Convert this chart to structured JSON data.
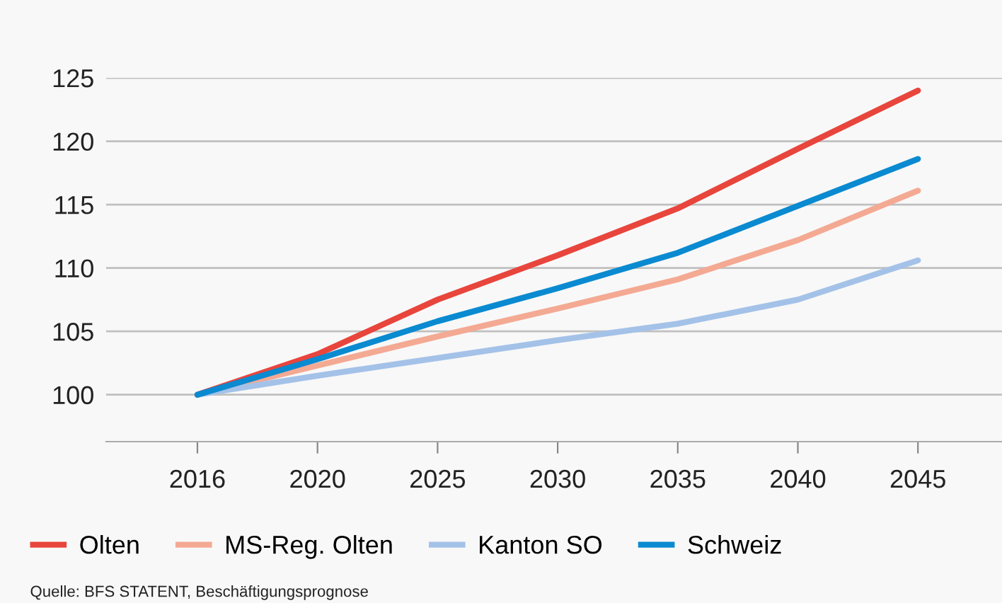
{
  "chart_data": {
    "type": "line",
    "categories": [
      "2016",
      "2020",
      "2025",
      "2030",
      "2035",
      "2040",
      "2045"
    ],
    "series": [
      {
        "name": "Olten",
        "color": "#e8453c",
        "values": [
          100,
          103.2,
          107.5,
          111.0,
          114.7,
          119.4,
          124.0
        ]
      },
      {
        "name": "MS-Reg. Olten",
        "color": "#f4a993",
        "values": [
          100,
          102.3,
          104.6,
          106.8,
          109.1,
          112.2,
          116.1
        ]
      },
      {
        "name": "Kanton SO",
        "color": "#a4c2e8",
        "values": [
          100,
          101.5,
          102.9,
          104.3,
          105.6,
          107.5,
          110.6
        ]
      },
      {
        "name": "Schweiz",
        "color": "#0a8ad0",
        "values": [
          100,
          102.8,
          105.8,
          108.4,
          111.2,
          114.9,
          118.6
        ]
      }
    ],
    "ylim": [
      96.3,
      125
    ],
    "yticks": [
      100,
      105,
      110,
      115,
      120,
      125
    ],
    "grid": "y",
    "legend": "bottom",
    "marker": "none",
    "line_style": "solid",
    "annotations": [
      "Quelle: BFS STATENT, Beschäftigungsprognose"
    ]
  }
}
